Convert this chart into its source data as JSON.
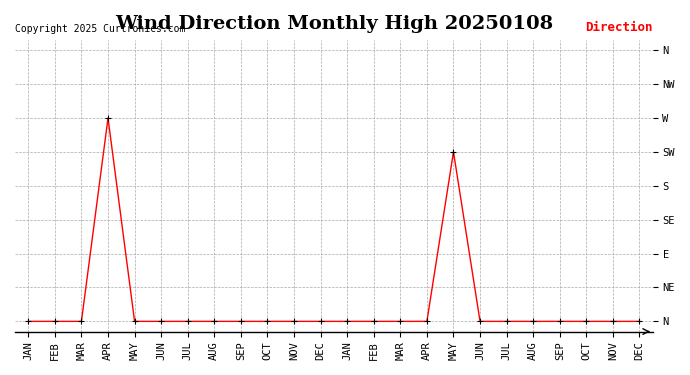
{
  "title": "Wind Direction Monthly High 20250108",
  "copyright": "Copyright 2025 Curtronics.com",
  "legend_label": "Direction",
  "legend_color": "#ff0000",
  "line_color": "#ff0000",
  "marker_color": "#000000",
  "background_color": "#ffffff",
  "grid_color": "#aaaaaa",
  "ytick_labels": [
    "N",
    "NE",
    "E",
    "SE",
    "S",
    "SW",
    "W",
    "NW",
    "N"
  ],
  "ytick_values": [
    0,
    1,
    2,
    3,
    4,
    5,
    6,
    7,
    8
  ],
  "x_labels": [
    "JAN",
    "FEB",
    "MAR",
    "APR",
    "MAY",
    "JUN",
    "JUL",
    "AUG",
    "SEP",
    "OCT",
    "NOV",
    "DEC",
    "JAN",
    "FEB",
    "MAR",
    "APR",
    "MAY",
    "JUN",
    "JUL",
    "AUG",
    "SEP",
    "OCT",
    "NOV",
    "DEC"
  ],
  "x_values": [
    0,
    1,
    2,
    3,
    4,
    5,
    6,
    7,
    8,
    9,
    10,
    11,
    12,
    13,
    14,
    15,
    16,
    17,
    18,
    19,
    20,
    21,
    22,
    23
  ],
  "y_values": [
    0,
    0,
    0,
    6,
    0,
    0,
    0,
    0,
    0,
    0,
    0,
    0,
    0,
    0,
    0,
    0,
    5,
    0,
    0,
    0,
    0,
    0,
    0,
    0
  ],
  "title_fontsize": 14,
  "label_fontsize": 8,
  "tick_fontsize": 7.5
}
